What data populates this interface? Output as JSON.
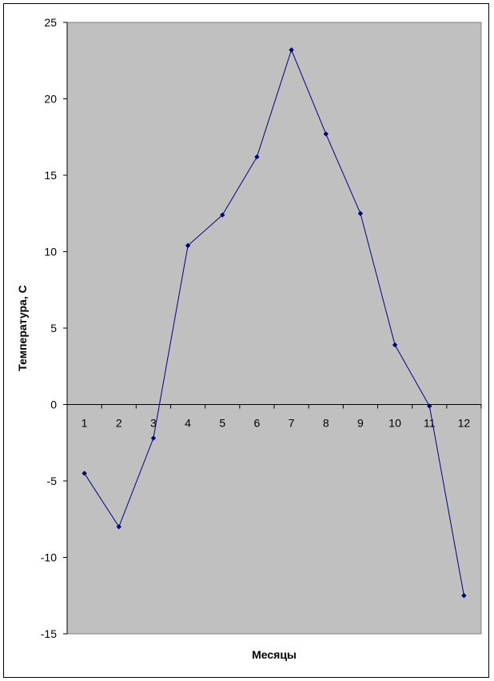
{
  "chart_data": {
    "type": "line",
    "title": "",
    "xlabel": "Месяцы",
    "ylabel": "Температура, С",
    "categories": [
      "1",
      "2",
      "3",
      "4",
      "5",
      "6",
      "7",
      "8",
      "9",
      "10",
      "11",
      "12"
    ],
    "series": [
      {
        "values": [
          -4.5,
          -8.0,
          -2.2,
          10.4,
          12.4,
          16.2,
          23.2,
          17.7,
          12.5,
          3.9,
          -0.1,
          -12.5
        ]
      }
    ],
    "ylim": [
      -15,
      25
    ],
    "yticks": [
      "-15",
      "-10",
      "-5",
      "0",
      "5",
      "10",
      "15",
      "20",
      "25"
    ],
    "grid": false,
    "legend": "none",
    "colors": {
      "plot_background": "#c0c0c0",
      "series_line": "#000080",
      "axis": "#000000"
    }
  }
}
